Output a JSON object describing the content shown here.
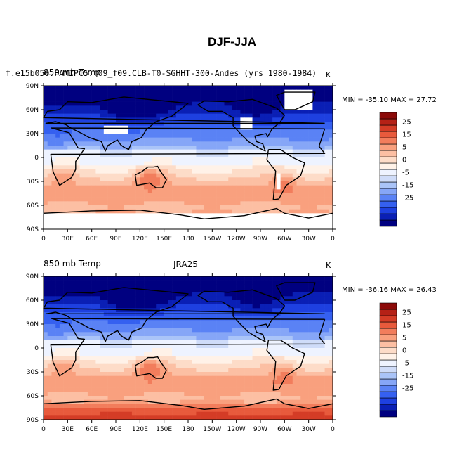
{
  "figure_title": "DJF-JJA",
  "palette": [
    "#000080",
    "#0a1fb5",
    "#1e40e0",
    "#3560f0",
    "#5a82f5",
    "#86a6f7",
    "#aac4f8",
    "#cfdcf9",
    "#eef3ff",
    "#fff2e8",
    "#fddcc8",
    "#fcbfa3",
    "#f9a07e",
    "#f27d5c",
    "#e85a3c",
    "#d43c26",
    "#b52116",
    "#8c0a08"
  ],
  "colorbar": {
    "tick_labels": [
      "25",
      "15",
      "5",
      "0",
      "-5",
      "-15",
      "-25"
    ],
    "unit": "K"
  },
  "chart_data": [
    {
      "type": "heatmap",
      "title_left": "850 mb Temp",
      "title_case": "f.e15b050.FAMIPC5.f09_f09.CLB-T0-SGHHT-300-Andes (yrs 1980-1984)",
      "title_right": "K",
      "stats": "MIN = -35.10 MAX =  27.72",
      "min": -35.1,
      "max": 27.72,
      "x_ticks": [
        "0",
        "30E",
        "60E",
        "90E",
        "120E",
        "150E",
        "180",
        "150W",
        "120W",
        "90W",
        "60W",
        "30W",
        "0"
      ],
      "y_ticks": [
        "90N",
        "60N",
        "30N",
        "0",
        "30S",
        "60S",
        "90S"
      ],
      "xlim": [
        0,
        360
      ],
      "ylim": [
        -90,
        90
      ],
      "levels": [
        -30,
        -25,
        -20,
        -15,
        -10,
        -5,
        -2.5,
        0,
        2.5,
        5,
        7.5,
        10,
        12.5,
        15,
        20,
        25,
        30
      ],
      "missing_regions": [
        "Antarctica",
        "Tibetan Plateau",
        "Greenland",
        "Rocky Mountains",
        "Andes"
      ]
    },
    {
      "type": "heatmap",
      "title_left": "850 mb Temp",
      "title_center": "JRA25",
      "title_right": "K",
      "stats": "MIN = -36.16 MAX =  26.43",
      "min": -36.16,
      "max": 26.43,
      "x_ticks": [
        "0",
        "30E",
        "60E",
        "90E",
        "120E",
        "150E",
        "180",
        "150W",
        "120W",
        "90W",
        "60W",
        "30W",
        "0"
      ],
      "y_ticks": [
        "90N",
        "60N",
        "30N",
        "0",
        "30S",
        "60S",
        "90S"
      ],
      "xlim": [
        0,
        360
      ],
      "ylim": [
        -90,
        90
      ],
      "levels": [
        -30,
        -25,
        -20,
        -15,
        -10,
        -5,
        -2.5,
        0,
        2.5,
        5,
        7.5,
        10,
        12.5,
        15,
        20,
        25,
        30
      ]
    }
  ]
}
